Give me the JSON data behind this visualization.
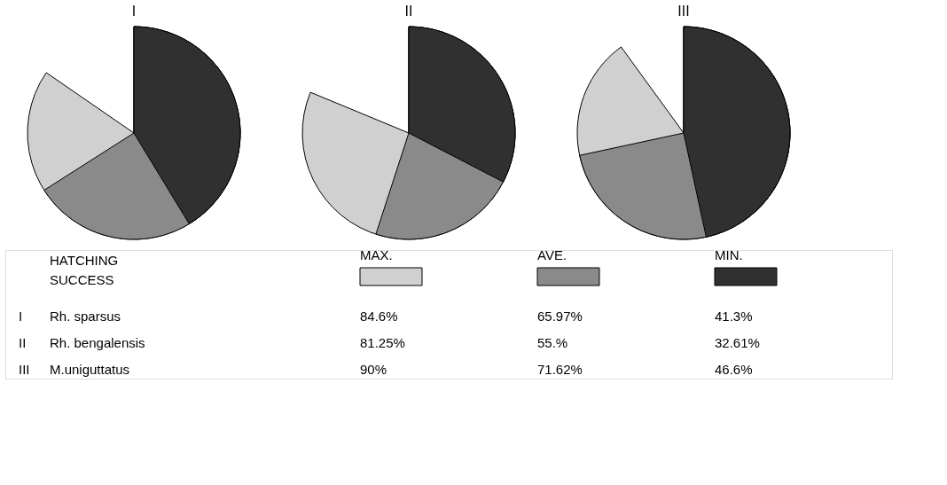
{
  "chart_data": [
    {
      "type": "other",
      "title": "I",
      "subtitle": "Rh. sparsus",
      "legend_title": "HATCHING SUCCESS",
      "categories": [
        "MAX.",
        "AVE.",
        "MIN."
      ],
      "values": [
        84.6,
        65.97,
        41.3
      ],
      "value_labels": [
        "84.6%",
        "65.97%",
        "41.3%"
      ],
      "colors": [
        "#d0d0d0",
        "#8a8a8a",
        "#303030"
      ]
    },
    {
      "type": "other",
      "title": "II",
      "subtitle": "Rh. bengalensis",
      "values": [
        81.25,
        55,
        32.61
      ],
      "value_labels": [
        "81.25%",
        "55.%",
        "32.61%"
      ],
      "colors": [
        "#d0d0d0",
        "#8a8a8a",
        "#303030"
      ]
    },
    {
      "type": "other",
      "title": "III",
      "subtitle": "M.uniguttatus",
      "values": [
        90,
        71.62,
        46.6
      ],
      "value_labels": [
        "90%",
        "71.62%",
        "46.6%"
      ],
      "colors": [
        "#d0d0d0",
        "#8a8a8a",
        "#303030"
      ]
    }
  ]
}
